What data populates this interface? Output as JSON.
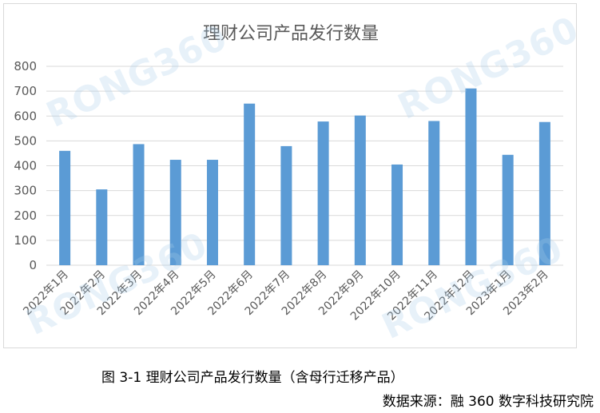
{
  "chart_data": {
    "type": "bar",
    "title": "理财公司产品发行数量",
    "categories": [
      "2022年1月",
      "2022年2月",
      "2022年3月",
      "2022年4月",
      "2022年5月",
      "2022年6月",
      "2022年7月",
      "2022年8月",
      "2022年9月",
      "2022年10月",
      "2022年11月",
      "2022年12月",
      "2023年1月",
      "2023年2月"
    ],
    "values": [
      460,
      305,
      487,
      424,
      424,
      650,
      479,
      578,
      602,
      405,
      580,
      711,
      444,
      576
    ],
    "yticks": [
      "0",
      "100",
      "200",
      "300",
      "400",
      "500",
      "600",
      "700",
      "800"
    ],
    "ylim": [
      0,
      800
    ],
    "grid": true,
    "bar_color": "#5b9bd5",
    "watermark": "RONG360"
  },
  "caption": "图 3-1 理财公司产品发行数量（含母行迁移产品）",
  "source": "数据来源：融 360 数字科技研究院"
}
